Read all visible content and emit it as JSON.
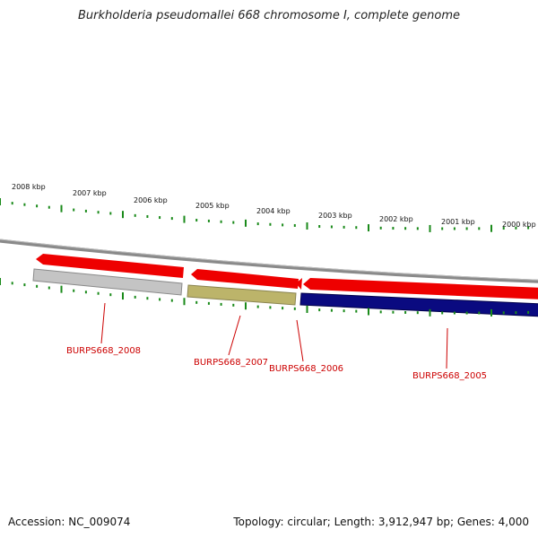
{
  "title": "Burkholderia pseudomallei 668 chromosome I, complete genome",
  "footer": {
    "accession": "Accession: NC_009074",
    "stats": "Topology: circular; Length: 3,912,947 bp; Genes: 4,000"
  },
  "colors": {
    "forward_arrow": "#ee0000",
    "backbone": "#808080",
    "tick": "#1a8a1a",
    "label": "#cc0000",
    "gene_gray": "#c4c4c4",
    "gene_olive": "#bcb46a",
    "gene_navy": "#0a0a80"
  },
  "scale_labels": [
    "2008 kbp",
    "2007 kbp",
    "2006 kbp",
    "2005 kbp",
    "2004 kbp",
    "2003 kbp",
    "2002 kbp",
    "2001 kbp",
    "2000 kbp"
  ],
  "genes": [
    {
      "label": "BURPS668_2008",
      "color_key": "gene_gray"
    },
    {
      "label": "BURPS668_2007",
      "color_key": "gene_olive"
    },
    {
      "label": "BURPS668_2006",
      "color_key": "gene_olive"
    },
    {
      "label": "BURPS668_2005",
      "color_key": "gene_navy"
    }
  ]
}
